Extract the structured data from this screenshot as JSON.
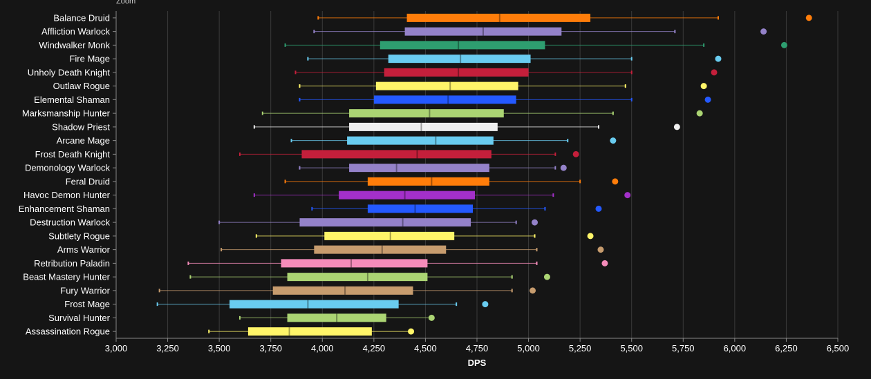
{
  "top_note": "Zoom",
  "chart_data": {
    "type": "boxplot",
    "orientation": "horizontal",
    "xlabel": "DPS",
    "xlim": [
      3000,
      6500
    ],
    "xticks": [
      3000,
      3250,
      3500,
      3750,
      4000,
      4250,
      4500,
      4750,
      5000,
      5250,
      5500,
      5750,
      6000,
      6250,
      6500
    ],
    "xtick_labels": [
      "3,000",
      "3,250",
      "3,500",
      "3,750",
      "4,000",
      "4,250",
      "4,500",
      "4,750",
      "5,000",
      "5,250",
      "5,500",
      "5,750",
      "6,000",
      "6,250",
      "6,500"
    ],
    "grid": true,
    "series": [
      {
        "name": "Balance Druid",
        "color": "#ff7d0a",
        "min": 3980,
        "q1": 4410,
        "median": 4860,
        "q3": 5300,
        "max": 5920,
        "outlier": 6360
      },
      {
        "name": "Affliction Warlock",
        "color": "#9482c9",
        "min": 3960,
        "q1": 4400,
        "median": 4780,
        "q3": 5160,
        "max": 5710,
        "outlier": 6140
      },
      {
        "name": "Windwalker Monk",
        "color": "#2e9e70",
        "min": 3820,
        "q1": 4280,
        "median": 4660,
        "q3": 5080,
        "max": 5850,
        "outlier": 6240
      },
      {
        "name": "Fire Mage",
        "color": "#69ccf0",
        "min": 3930,
        "q1": 4320,
        "median": 4670,
        "q3": 5010,
        "max": 5500,
        "outlier": 5920
      },
      {
        "name": "Unholy Death Knight",
        "color": "#c41f3b",
        "min": 3870,
        "q1": 4300,
        "median": 4660,
        "q3": 5000,
        "max": 5500,
        "outlier": 5900
      },
      {
        "name": "Outlaw Rogue",
        "color": "#fff569",
        "min": 3890,
        "q1": 4260,
        "median": 4620,
        "q3": 4950,
        "max": 5470,
        "outlier": 5850
      },
      {
        "name": "Elemental Shaman",
        "color": "#2459ff",
        "min": 3890,
        "q1": 4250,
        "median": 4610,
        "q3": 4940,
        "max": 5500,
        "outlier": 5870
      },
      {
        "name": "Marksmanship Hunter",
        "color": "#abd473",
        "min": 3710,
        "q1": 4130,
        "median": 4520,
        "q3": 4880,
        "max": 5410,
        "outlier": 5830
      },
      {
        "name": "Shadow Priest",
        "color": "#f0f0f0",
        "min": 3670,
        "q1": 4130,
        "median": 4480,
        "q3": 4850,
        "max": 5340,
        "outlier": 5720
      },
      {
        "name": "Arcane Mage",
        "color": "#69ccf0",
        "min": 3850,
        "q1": 4120,
        "median": 4550,
        "q3": 4830,
        "max": 5190,
        "outlier": 5410
      },
      {
        "name": "Frost Death Knight",
        "color": "#c41f3b",
        "min": 3600,
        "q1": 3900,
        "median": 4460,
        "q3": 4820,
        "max": 5130,
        "outlier": 5230
      },
      {
        "name": "Demonology Warlock",
        "color": "#9482c9",
        "min": 3890,
        "q1": 4130,
        "median": 4360,
        "q3": 4810,
        "max": 5130,
        "outlier": 5170
      },
      {
        "name": "Feral Druid",
        "color": "#ff7d0a",
        "min": 3820,
        "q1": 4220,
        "median": 4530,
        "q3": 4810,
        "max": 5250,
        "outlier": 5420
      },
      {
        "name": "Havoc Demon Hunter",
        "color": "#a330c9",
        "min": 3670,
        "q1": 4080,
        "median": 4400,
        "q3": 4740,
        "max": 5120,
        "outlier": 5480
      },
      {
        "name": "Enhancement Shaman",
        "color": "#2459ff",
        "min": 3950,
        "q1": 4220,
        "median": 4450,
        "q3": 4730,
        "max": 5080,
        "outlier": 5340
      },
      {
        "name": "Destruction Warlock",
        "color": "#9482c9",
        "min": 3500,
        "q1": 3890,
        "median": 4390,
        "q3": 4720,
        "max": 4940,
        "outlier": 5030
      },
      {
        "name": "Subtlety Rogue",
        "color": "#fff569",
        "min": 3680,
        "q1": 4010,
        "median": 4330,
        "q3": 4640,
        "max": 5030,
        "outlier": 5300
      },
      {
        "name": "Arms Warrior",
        "color": "#c79c6e",
        "min": 3510,
        "q1": 3960,
        "median": 4290,
        "q3": 4600,
        "max": 5040,
        "outlier": 5350
      },
      {
        "name": "Retribution Paladin",
        "color": "#f58cba",
        "min": 3350,
        "q1": 3800,
        "median": 4140,
        "q3": 4510,
        "max": 5040,
        "outlier": 5370
      },
      {
        "name": "Beast Mastery Hunter",
        "color": "#abd473",
        "min": 3360,
        "q1": 3830,
        "median": 4220,
        "q3": 4510,
        "max": 4920,
        "outlier": 5090
      },
      {
        "name": "Fury Warrior",
        "color": "#c79c6e",
        "min": 3210,
        "q1": 3760,
        "median": 4110,
        "q3": 4440,
        "max": 4920,
        "outlier": 5020
      },
      {
        "name": "Frost Mage",
        "color": "#69ccf0",
        "min": 3200,
        "q1": 3550,
        "median": 3930,
        "q3": 4370,
        "max": 4650,
        "outlier": 4790
      },
      {
        "name": "Survival Hunter",
        "color": "#abd473",
        "min": 3600,
        "q1": 3830,
        "median": 4070,
        "q3": 4310,
        "max": 4520,
        "outlier": 4530
      },
      {
        "name": "Assassination Rogue",
        "color": "#fff569",
        "min": 3450,
        "q1": 3640,
        "median": 3840,
        "q3": 4240,
        "max": 4440,
        "outlier": 4430
      }
    ]
  }
}
